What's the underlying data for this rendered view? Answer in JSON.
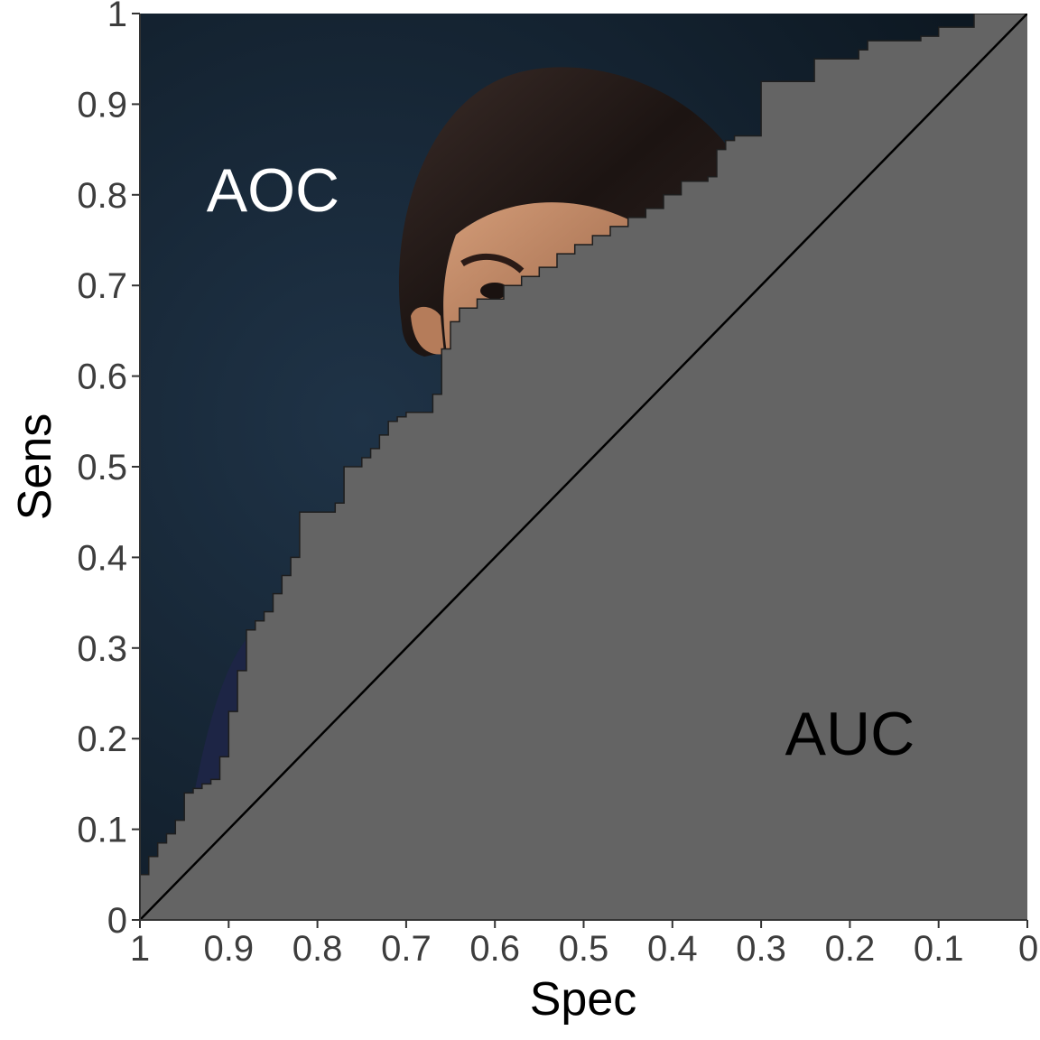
{
  "chart_data": {
    "type": "area",
    "xlabel": "Spec",
    "ylabel": "Sens",
    "x_reversed": true,
    "xlim": [
      1,
      0
    ],
    "ylim": [
      0,
      1
    ],
    "x_ticks": [
      "1",
      "0.9",
      "0.8",
      "0.7",
      "0.6",
      "0.5",
      "0.4",
      "0.3",
      "0.2",
      "0.1",
      "0"
    ],
    "y_ticks": [
      "0",
      "0.1",
      "0.2",
      "0.3",
      "0.4",
      "0.5",
      "0.6",
      "0.7",
      "0.8",
      "0.9",
      "1"
    ],
    "grid": false,
    "annotations": [
      {
        "text": "AOC",
        "x": 0.85,
        "y": 0.8,
        "color": "#ffffff"
      },
      {
        "text": "AUC",
        "x": 0.2,
        "y": 0.2,
        "color": "#000000"
      }
    ],
    "reference_line": {
      "from": [
        1,
        0
      ],
      "to": [
        0,
        1
      ],
      "color": "#000000"
    },
    "colors": {
      "auc_fill": "#646464",
      "aoc_background": "#13212f",
      "hair": "#241a18",
      "skin": "#c08a68"
    },
    "roc_curve": {
      "spec": [
        1,
        0.99,
        0.99,
        0.98,
        0.98,
        0.97,
        0.97,
        0.96,
        0.96,
        0.95,
        0.95,
        0.94,
        0.94,
        0.93,
        0.93,
        0.92,
        0.92,
        0.91,
        0.91,
        0.9,
        0.9,
        0.89,
        0.89,
        0.88,
        0.88,
        0.87,
        0.87,
        0.86,
        0.86,
        0.85,
        0.85,
        0.84,
        0.84,
        0.83,
        0.83,
        0.82,
        0.82,
        0.81,
        0.81,
        0.78,
        0.78,
        0.77,
        0.77,
        0.75,
        0.75,
        0.74,
        0.74,
        0.73,
        0.73,
        0.72,
        0.72,
        0.71,
        0.71,
        0.7,
        0.7,
        0.67,
        0.67,
        0.66,
        0.66,
        0.65,
        0.65,
        0.64,
        0.64,
        0.62,
        0.62,
        0.59,
        0.59,
        0.57,
        0.57,
        0.55,
        0.55,
        0.53,
        0.53,
        0.51,
        0.51,
        0.49,
        0.49,
        0.47,
        0.47,
        0.45,
        0.45,
        0.43,
        0.43,
        0.41,
        0.41,
        0.39,
        0.39,
        0.36,
        0.36,
        0.35,
        0.35,
        0.34,
        0.34,
        0.33,
        0.33,
        0.3,
        0.3,
        0.24,
        0.24,
        0.19,
        0.19,
        0.18,
        0.18,
        0.12,
        0.12,
        0.1,
        0.1,
        0.06,
        0.06,
        0
      ],
      "sens": [
        0.05,
        0.05,
        0.07,
        0.07,
        0.085,
        0.085,
        0.095,
        0.095,
        0.11,
        0.11,
        0.14,
        0.14,
        0.145,
        0.145,
        0.15,
        0.15,
        0.155,
        0.155,
        0.18,
        0.18,
        0.23,
        0.23,
        0.275,
        0.275,
        0.32,
        0.32,
        0.33,
        0.33,
        0.34,
        0.34,
        0.36,
        0.36,
        0.38,
        0.38,
        0.4,
        0.4,
        0.45,
        0.45,
        0.45,
        0.45,
        0.46,
        0.46,
        0.5,
        0.5,
        0.51,
        0.51,
        0.52,
        0.52,
        0.535,
        0.535,
        0.55,
        0.55,
        0.555,
        0.555,
        0.56,
        0.56,
        0.58,
        0.58,
        0.63,
        0.63,
        0.66,
        0.66,
        0.675,
        0.675,
        0.685,
        0.685,
        0.7,
        0.7,
        0.71,
        0.71,
        0.72,
        0.72,
        0.735,
        0.735,
        0.745,
        0.745,
        0.755,
        0.755,
        0.765,
        0.765,
        0.775,
        0.775,
        0.785,
        0.785,
        0.8,
        0.8,
        0.815,
        0.815,
        0.82,
        0.82,
        0.85,
        0.85,
        0.86,
        0.86,
        0.865,
        0.865,
        0.925,
        0.925,
        0.95,
        0.95,
        0.96,
        0.96,
        0.97,
        0.97,
        0.975,
        0.975,
        0.985,
        0.985,
        1,
        1
      ]
    }
  }
}
